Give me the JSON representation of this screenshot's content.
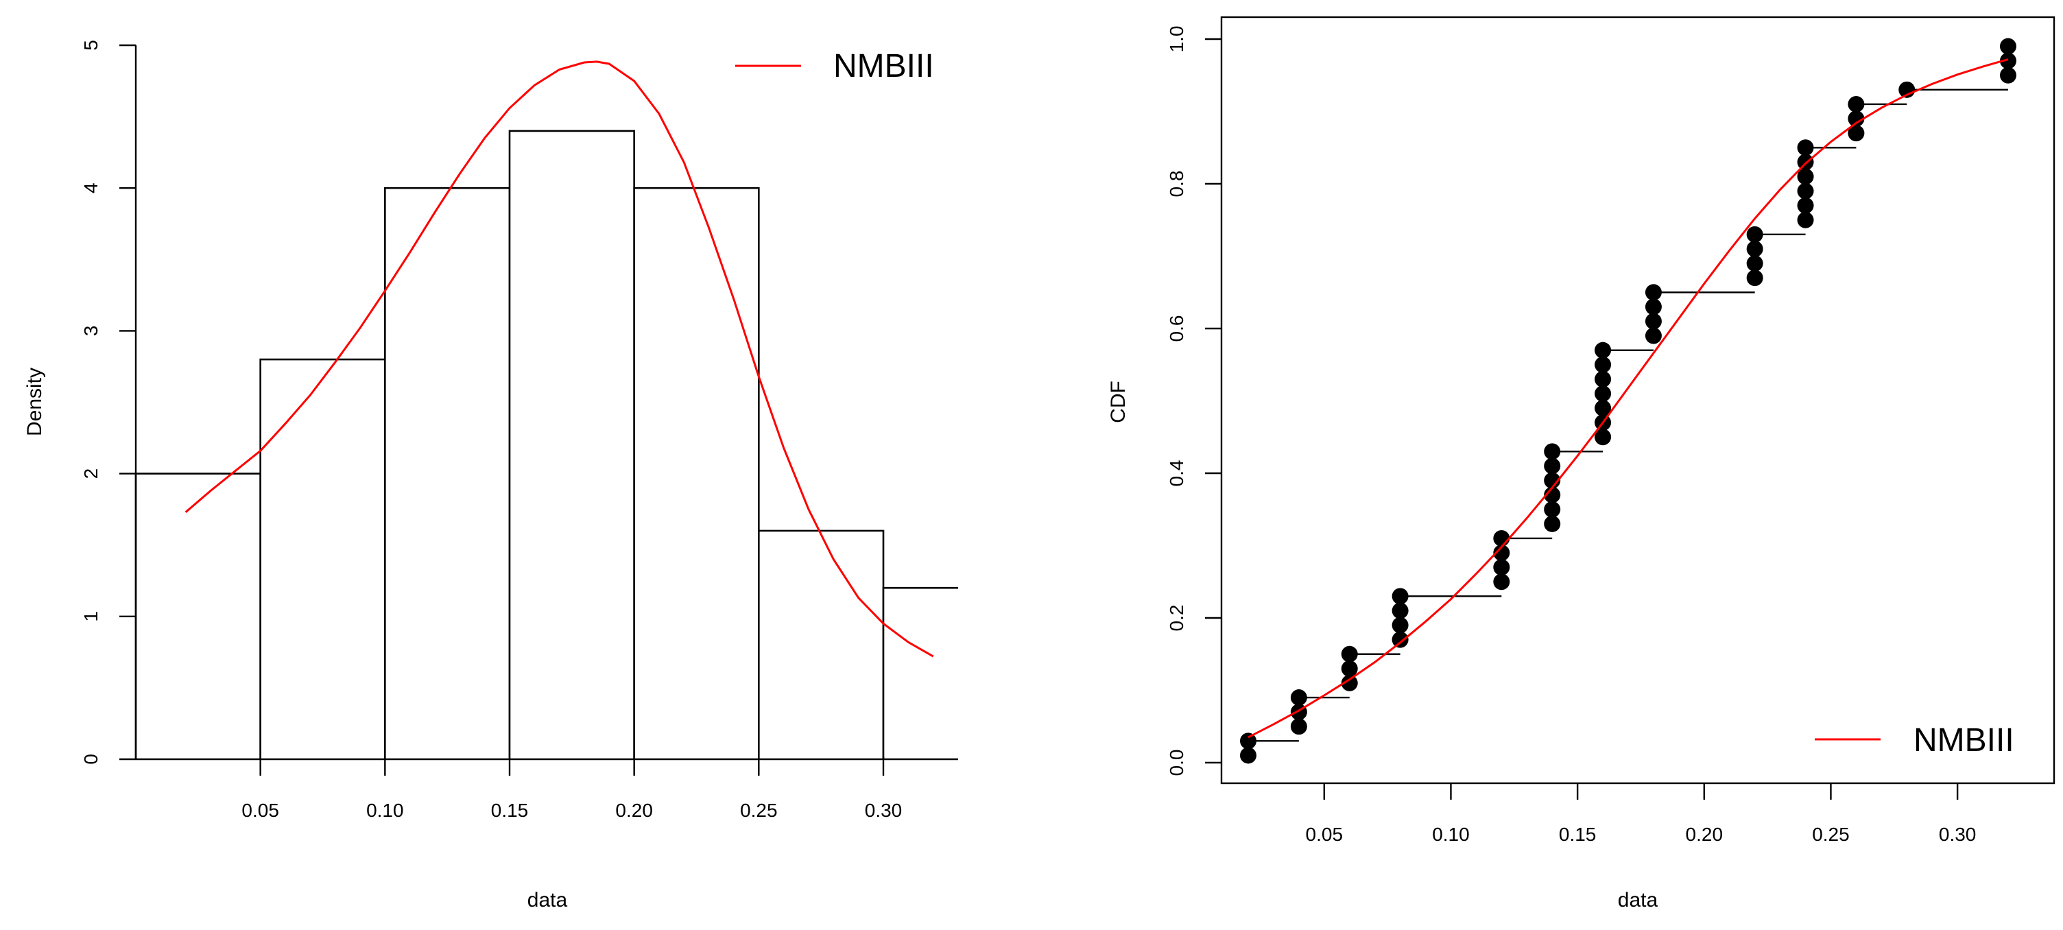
{
  "colors": {
    "fit_line": "#ff0000",
    "bars": "#000000",
    "points": "#000000",
    "background": "#ffffff"
  },
  "chart_data": [
    {
      "type": "bar",
      "subtype": "histogram-with-density",
      "xlabel": "data",
      "ylabel": "Density",
      "xlim": [
        0.0,
        0.33
      ],
      "ylim": [
        0,
        5
      ],
      "x_ticks": [
        "0.05",
        "0.10",
        "0.15",
        "0.20",
        "0.25",
        "0.30"
      ],
      "y_ticks": [
        "0",
        "1",
        "2",
        "3",
        "4",
        "5"
      ],
      "bins": [
        {
          "from": 0.0,
          "to": 0.05,
          "value": 2.0
        },
        {
          "from": 0.05,
          "to": 0.1,
          "value": 2.8
        },
        {
          "from": 0.1,
          "to": 0.15,
          "value": 4.0
        },
        {
          "from": 0.15,
          "to": 0.2,
          "value": 4.4
        },
        {
          "from": 0.2,
          "to": 0.25,
          "value": 4.0
        },
        {
          "from": 0.25,
          "to": 0.3,
          "value": 1.6
        },
        {
          "from": 0.3,
          "to": 0.35,
          "value": 1.2
        }
      ],
      "series": [
        {
          "name": "NMBIII",
          "color": "#ff0000",
          "x": [
            0.02,
            0.03,
            0.04,
            0.05,
            0.06,
            0.07,
            0.08,
            0.09,
            0.1,
            0.11,
            0.12,
            0.13,
            0.14,
            0.15,
            0.16,
            0.17,
            0.18,
            0.185,
            0.19,
            0.2,
            0.21,
            0.22,
            0.23,
            0.24,
            0.25,
            0.26,
            0.27,
            0.28,
            0.29,
            0.3,
            0.31,
            0.32
          ],
          "y": [
            1.73,
            1.88,
            2.02,
            2.16,
            2.35,
            2.55,
            2.78,
            3.02,
            3.28,
            3.55,
            3.83,
            4.1,
            4.35,
            4.56,
            4.72,
            4.83,
            4.88,
            4.885,
            4.87,
            4.75,
            4.52,
            4.18,
            3.72,
            3.22,
            2.68,
            2.18,
            1.75,
            1.4,
            1.13,
            0.95,
            0.82,
            0.72
          ]
        }
      ],
      "legend": {
        "position": "top-right",
        "entries": [
          "NMBIII"
        ]
      }
    },
    {
      "type": "scatter",
      "subtype": "empirical-cdf-with-fitted-cdf",
      "xlabel": "data",
      "ylabel": "CDF",
      "xlim": [
        0.007,
        0.333
      ],
      "ylim": [
        -0.02,
        1.02
      ],
      "x_ticks": [
        "0.05",
        "0.10",
        "0.15",
        "0.20",
        "0.25",
        "0.30"
      ],
      "y_ticks": [
        "0.0",
        "0.2",
        "0.4",
        "0.6",
        "0.8",
        "1.0"
      ],
      "ecdf_steps": [
        {
          "x": 0.02,
          "y": 0.03,
          "next_x": 0.04
        },
        {
          "x": 0.04,
          "y": 0.09,
          "next_x": 0.06
        },
        {
          "x": 0.06,
          "y": 0.15,
          "next_x": 0.08
        },
        {
          "x": 0.08,
          "y": 0.23,
          "next_x": 0.12
        },
        {
          "x": 0.12,
          "y": 0.31,
          "next_x": 0.14
        },
        {
          "x": 0.14,
          "y": 0.43,
          "next_x": 0.16
        },
        {
          "x": 0.16,
          "y": 0.57,
          "next_x": 0.18
        },
        {
          "x": 0.18,
          "y": 0.65,
          "next_x": 0.22
        },
        {
          "x": 0.22,
          "y": 0.73,
          "next_x": 0.24
        },
        {
          "x": 0.24,
          "y": 0.85,
          "next_x": 0.26
        },
        {
          "x": 0.26,
          "y": 0.91,
          "next_x": 0.28
        },
        {
          "x": 0.28,
          "y": 0.93,
          "next_x": 0.32
        }
      ],
      "points": [
        {
          "x": 0.02,
          "y": [
            0.01,
            0.03
          ]
        },
        {
          "x": 0.04,
          "y": [
            0.05,
            0.07,
            0.09
          ]
        },
        {
          "x": 0.06,
          "y": [
            0.11,
            0.13,
            0.15
          ]
        },
        {
          "x": 0.08,
          "y": [
            0.17,
            0.19,
            0.21,
            0.23
          ]
        },
        {
          "x": 0.12,
          "y": [
            0.25,
            0.27,
            0.29,
            0.31
          ]
        },
        {
          "x": 0.14,
          "y": [
            0.33,
            0.35,
            0.37,
            0.39,
            0.41,
            0.43
          ]
        },
        {
          "x": 0.16,
          "y": [
            0.45,
            0.47,
            0.49,
            0.51,
            0.53,
            0.55,
            0.57
          ]
        },
        {
          "x": 0.18,
          "y": [
            0.59,
            0.61,
            0.63,
            0.65
          ]
        },
        {
          "x": 0.22,
          "y": [
            0.67,
            0.69,
            0.71,
            0.73
          ]
        },
        {
          "x": 0.24,
          "y": [
            0.75,
            0.77,
            0.79,
            0.81,
            0.83,
            0.85
          ]
        },
        {
          "x": 0.26,
          "y": [
            0.87,
            0.89,
            0.91
          ]
        },
        {
          "x": 0.28,
          "y": [
            0.93
          ]
        },
        {
          "x": 0.32,
          "y": [
            0.95,
            0.97,
            0.99
          ]
        }
      ],
      "series": [
        {
          "name": "NMBIII",
          "color": "#ff0000",
          "x": [
            0.02,
            0.03,
            0.04,
            0.05,
            0.06,
            0.07,
            0.08,
            0.09,
            0.1,
            0.11,
            0.12,
            0.13,
            0.14,
            0.15,
            0.16,
            0.17,
            0.18,
            0.19,
            0.2,
            0.21,
            0.22,
            0.23,
            0.24,
            0.25,
            0.26,
            0.27,
            0.28,
            0.29,
            0.3,
            0.31,
            0.32
          ],
          "y": [
            0.035,
            0.053,
            0.072,
            0.093,
            0.115,
            0.139,
            0.166,
            0.195,
            0.226,
            0.261,
            0.298,
            0.338,
            0.38,
            0.424,
            0.47,
            0.518,
            0.566,
            0.614,
            0.662,
            0.708,
            0.752,
            0.792,
            0.828,
            0.858,
            0.884,
            0.905,
            0.923,
            0.938,
            0.951,
            0.962,
            0.972
          ]
        }
      ],
      "legend": {
        "position": "bottom-right",
        "entries": [
          "NMBIII"
        ]
      }
    }
  ]
}
